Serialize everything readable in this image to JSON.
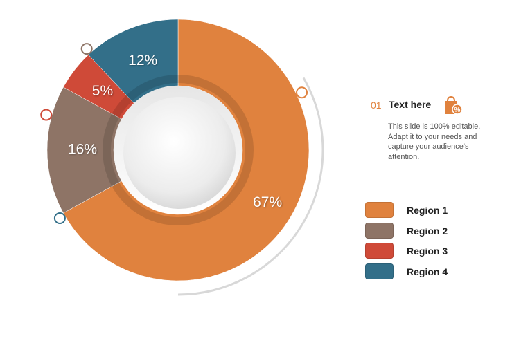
{
  "chart_data": {
    "type": "pie",
    "donut": true,
    "categories": [
      "Region 1",
      "Region 2",
      "Region 3",
      "Region 4"
    ],
    "values": [
      67,
      16,
      5,
      12
    ],
    "labels": [
      "67%",
      "16%",
      "5%",
      "12%"
    ],
    "colors": [
      "#e0823e",
      "#8e7466",
      "#cf4a38",
      "#336f89"
    ],
    "legend": "right"
  },
  "info": {
    "number": "01",
    "title": "Text here",
    "body": "This slide is 100% editable. Adapt it to your needs and capture your audience's attention.",
    "icon": "shopping-bag-percent-icon"
  },
  "legend_items": [
    {
      "label": "Region 1",
      "color": "#e0823e"
    },
    {
      "label": "Region 2",
      "color": "#8e7466"
    },
    {
      "label": "Region 3",
      "color": "#cf4a38"
    },
    {
      "label": "Region 4",
      "color": "#336f89"
    }
  ]
}
